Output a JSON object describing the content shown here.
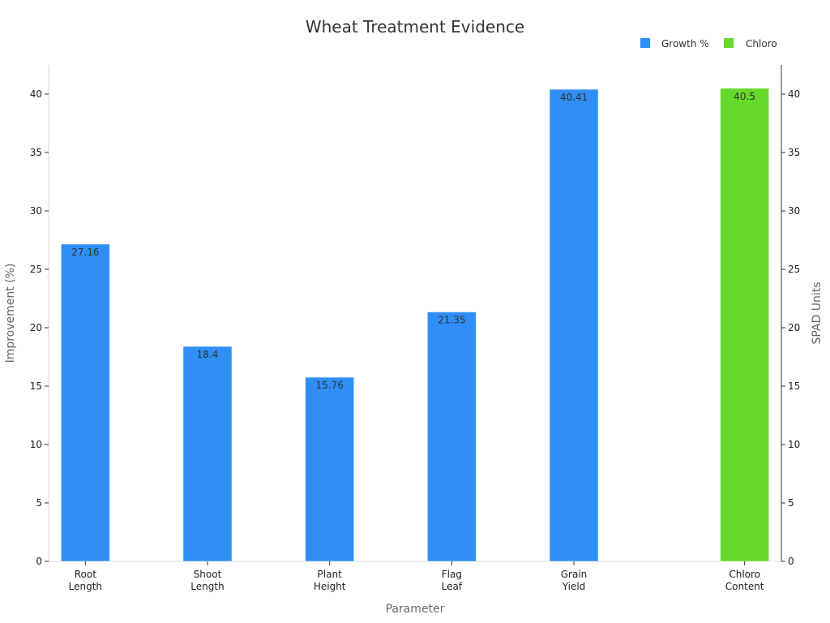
{
  "chart_data": {
    "type": "bar",
    "title": "Wheat Treatment Evidence",
    "xlabel": "Parameter",
    "ylabel": "Improvement (%)",
    "y2label": "SPAD Units",
    "categories": [
      [
        "Root",
        "Length"
      ],
      [
        "Shoot",
        "Length"
      ],
      [
        "Plant",
        "Height"
      ],
      [
        "Flag",
        "Leaf"
      ],
      [
        "Grain",
        "Yield"
      ],
      [
        "Chloro",
        "Content"
      ]
    ],
    "series": [
      {
        "name": "Growth %",
        "axis": "left",
        "color": "#2f8ff7",
        "values": [
          27.16,
          18.4,
          15.76,
          21.35,
          40.41,
          null
        ],
        "labels": [
          "27.16",
          "18.4",
          "15.76",
          "21.35",
          "40.41",
          ""
        ]
      },
      {
        "name": "Chloro",
        "axis": "right",
        "color": "#66d92a",
        "values": [
          null,
          null,
          null,
          null,
          null,
          40.5
        ],
        "labels": [
          "",
          "",
          "",
          "",
          "",
          "40.5"
        ]
      }
    ],
    "ylim": [
      0,
      42.5
    ],
    "y2lim": [
      0,
      42.5
    ],
    "yticks": [
      "0",
      "5",
      "10",
      "15",
      "20",
      "25",
      "30",
      "35",
      "40"
    ],
    "y2ticks": [
      "0",
      "5",
      "10",
      "15",
      "20",
      "25",
      "30",
      "35",
      "40"
    ],
    "legend_position": "top-right",
    "grid": false
  }
}
